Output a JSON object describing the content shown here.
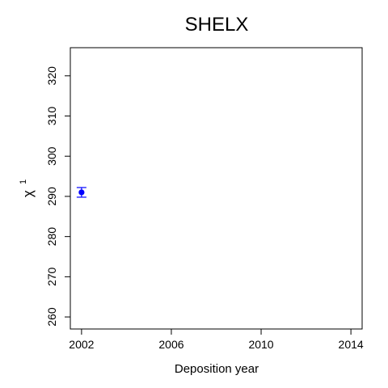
{
  "chart_data": {
    "type": "scatter",
    "title": "SHELX",
    "xlabel": "Deposition year",
    "ylabel_symbol": "χ",
    "ylabel_superscript": "1",
    "xlim": [
      2001.5,
      2014.5
    ],
    "ylim": [
      257,
      327
    ],
    "xticks": [
      2002,
      2006,
      2010,
      2014
    ],
    "yticks": [
      260,
      270,
      280,
      290,
      300,
      310,
      320
    ],
    "xtick_labels": [
      "2002",
      "2006",
      "2010",
      "2014"
    ],
    "ytick_labels": [
      "260",
      "270",
      "280",
      "290",
      "300",
      "310",
      "320"
    ],
    "grid": false,
    "points": [
      {
        "x": 2002,
        "y": 291,
        "err_low": 289.8,
        "err_high": 292.2
      }
    ],
    "point_color": "#0000ff"
  }
}
